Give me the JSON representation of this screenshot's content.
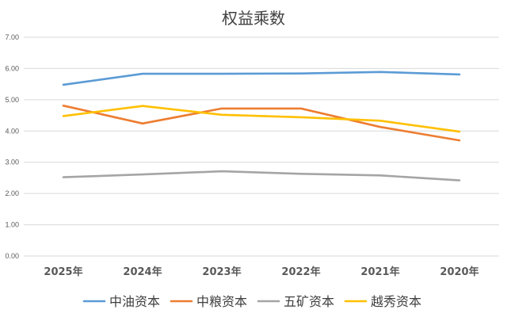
{
  "chart_data": {
    "type": "line",
    "title": "权益乘数",
    "xlabel": "",
    "ylabel": "",
    "categories": [
      "2025年",
      "2024年",
      "2023年",
      "2022年",
      "2021年",
      "2020年"
    ],
    "ylim": [
      0,
      7
    ],
    "yticks": [
      "0.00",
      "1.00",
      "2.00",
      "3.00",
      "4.00",
      "5.00",
      "6.00",
      "7.00"
    ],
    "grid": true,
    "legend_position": "bottom",
    "series": [
      {
        "name": "中油资本",
        "color": "#5b9bd5",
        "values": [
          5.48,
          5.83,
          5.83,
          5.84,
          5.89,
          5.81
        ]
      },
      {
        "name": "中粮资本",
        "color": "#ed7d31",
        "values": [
          4.81,
          4.24,
          4.72,
          4.72,
          4.13,
          3.7
        ]
      },
      {
        "name": "五矿资本",
        "color": "#a5a5a5",
        "values": [
          2.52,
          2.61,
          2.71,
          2.63,
          2.58,
          2.42
        ]
      },
      {
        "name": "越秀资本",
        "color": "#ffc000",
        "values": [
          4.48,
          4.8,
          4.52,
          4.44,
          4.33,
          3.98
        ]
      }
    ]
  }
}
